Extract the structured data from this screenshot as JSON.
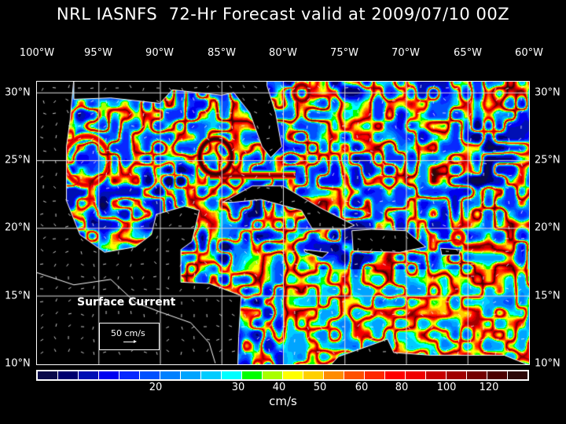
{
  "title": "NRL IASNFS  72-Hr Forecast valid at 2009/07/10 00Z",
  "lon_labels": [
    "100°W",
    "95°W",
    "90°W",
    "85°W",
    "80°W",
    "75°W",
    "70°W",
    "65°W",
    "60°W"
  ],
  "lat_labels": [
    "30°N",
    "25°N",
    "20°N",
    "15°N",
    "10°N"
  ],
  "legend": {
    "title": "Surface Current",
    "scale_label": "50 cm/s"
  },
  "colorbar": {
    "colors": [
      "#0a0a4a",
      "#00006e",
      "#0010b4",
      "#0000f0",
      "#0828ff",
      "#0050ff",
      "#0080ff",
      "#00a4ff",
      "#00ccff",
      "#00ffff",
      "#00ff00",
      "#a8ff00",
      "#ffff00",
      "#ffd000",
      "#ff8c00",
      "#ff5000",
      "#ff2800",
      "#ff0000",
      "#f00000",
      "#c80000",
      "#a00000",
      "#740000",
      "#4c0000",
      "#2c0808"
    ],
    "tick_labels": [
      "20",
      "30",
      "40",
      "50",
      "60",
      "80",
      "100",
      "120"
    ],
    "unit": "cm/s"
  }
}
